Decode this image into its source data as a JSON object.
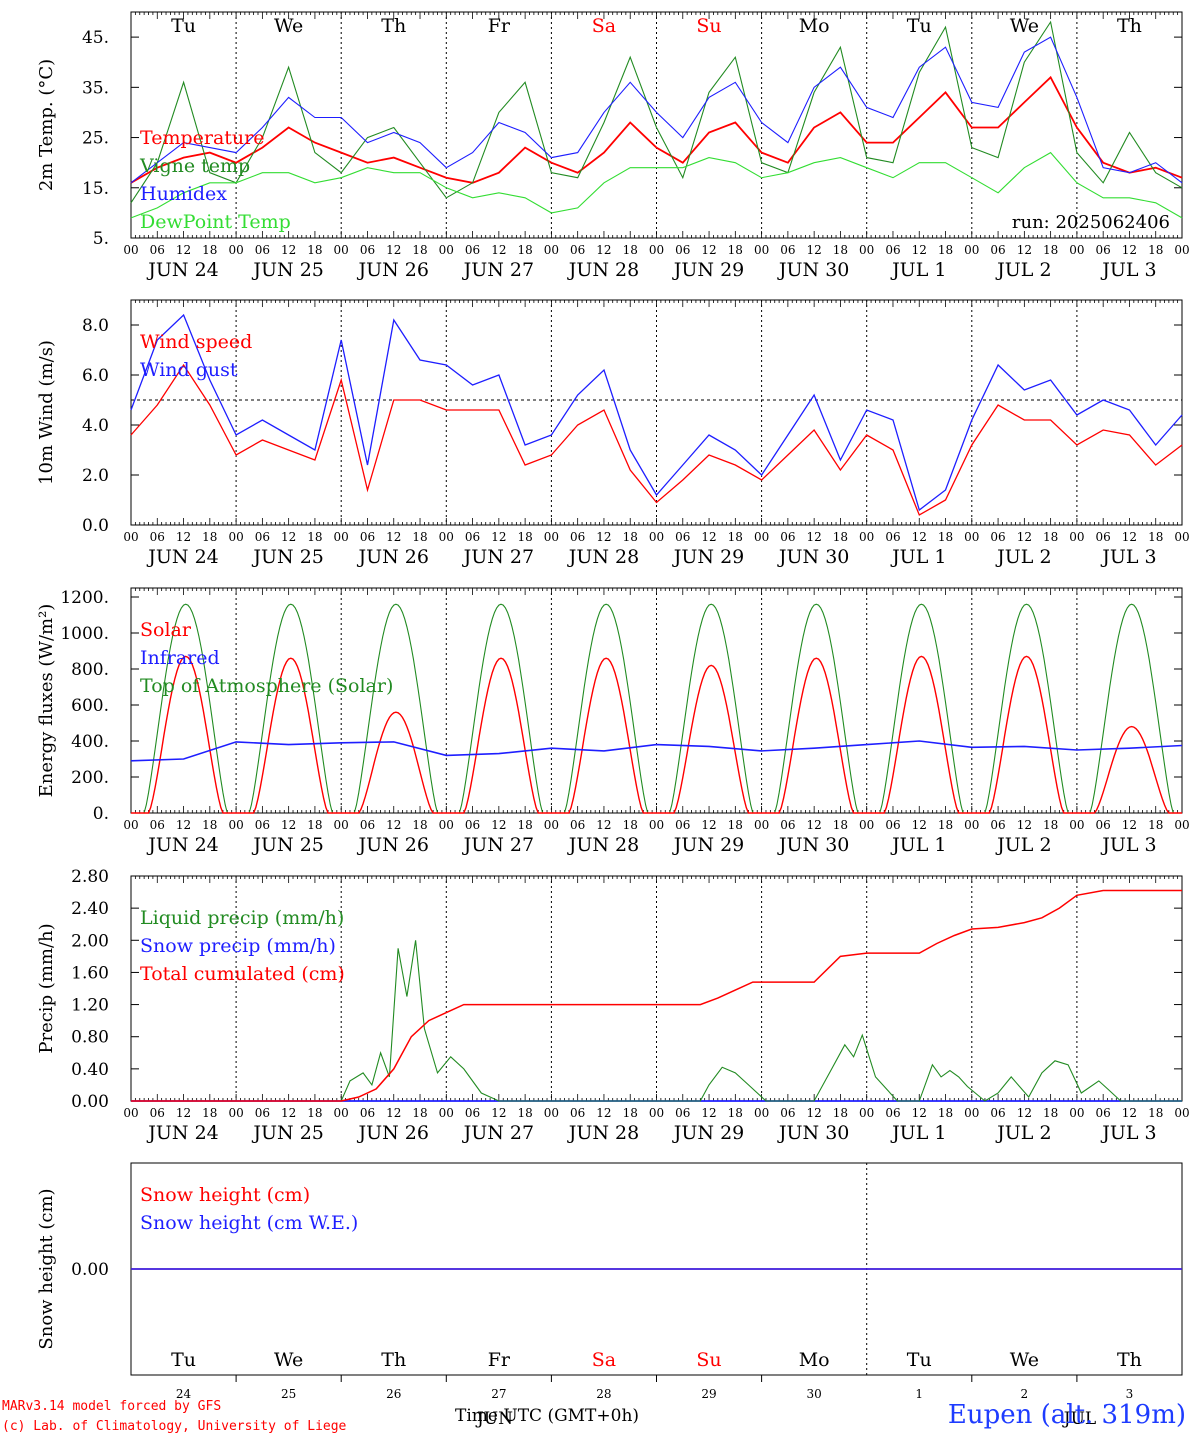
{
  "footer": {
    "model": "MARv3.14 model forced by GFS",
    "copyright": "(c) Lab. of Climatology, University of Liege",
    "time_label": "Time UTC (GMT+0h)",
    "station": "Eupen (alt. 319m)"
  },
  "colors": {
    "red": "#ff0000",
    "green": "#228b22",
    "blue": "#1e1eff",
    "lightgreen": "#33dd33"
  },
  "chart_data": [
    {
      "type": "line",
      "id": "temp",
      "ylabel": "2m Temp. (°C)",
      "ylim": [
        5,
        50
      ],
      "yticks": [
        "5.",
        "15.",
        "25.",
        "35.",
        "45."
      ],
      "ytick_values": [
        5,
        15,
        25,
        35,
        45
      ],
      "run_label": "run: 2025062406",
      "day_names": [
        "Tu",
        "We",
        "Th",
        "Fr",
        "Sa",
        "Su",
        "Mo",
        "Tu",
        "We",
        "Th"
      ],
      "weekend_days": [
        4,
        5
      ],
      "date_labels": [
        "JUN 24",
        "JUN 25",
        "JUN 26",
        "JUN 27",
        "JUN 28",
        "JUN 29",
        "JUN 30",
        "JUL  1",
        "JUL  2",
        "JUL  3"
      ],
      "hour_labels": [
        "00",
        "06",
        "12",
        "18"
      ],
      "x_unit": "hours since Jun 24 00 UTC",
      "series": [
        {
          "name": "Temperature",
          "color": "#ff0000",
          "x": [
            0,
            6,
            12,
            18,
            24,
            30,
            36,
            42,
            48,
            54,
            60,
            66,
            72,
            78,
            84,
            90,
            96,
            102,
            108,
            114,
            120,
            126,
            132,
            138,
            144,
            150,
            156,
            162,
            168,
            174,
            180,
            186,
            192,
            198,
            204,
            210,
            216,
            222,
            228,
            234,
            240
          ],
          "y": [
            16,
            19,
            21,
            22,
            20,
            23,
            27,
            24,
            22,
            20,
            21,
            19,
            17,
            16,
            18,
            23,
            20,
            18,
            22,
            28,
            23,
            20,
            26,
            28,
            22,
            20,
            27,
            30,
            24,
            24,
            29,
            34,
            27,
            27,
            32,
            37,
            27,
            20,
            18,
            19,
            17
          ]
        },
        {
          "name": "Vigne temp",
          "color": "#228b22",
          "x": [
            0,
            6,
            12,
            18,
            24,
            30,
            36,
            42,
            48,
            54,
            60,
            66,
            72,
            78,
            84,
            90,
            96,
            102,
            108,
            114,
            120,
            126,
            132,
            138,
            144,
            150,
            156,
            162,
            168,
            174,
            180,
            186,
            192,
            198,
            204,
            210,
            216,
            222,
            228,
            234,
            240
          ],
          "y": [
            12,
            20,
            36,
            18,
            16,
            25,
            39,
            22,
            18,
            25,
            27,
            20,
            13,
            16,
            30,
            36,
            18,
            17,
            28,
            41,
            27,
            17,
            34,
            41,
            20,
            18,
            34,
            43,
            21,
            20,
            38,
            47,
            23,
            21,
            40,
            48,
            22,
            16,
            26,
            18,
            15
          ]
        },
        {
          "name": "Humidex",
          "color": "#1e1eff",
          "x": [
            0,
            6,
            12,
            18,
            24,
            30,
            36,
            42,
            48,
            54,
            60,
            66,
            72,
            78,
            84,
            90,
            96,
            102,
            108,
            114,
            120,
            126,
            132,
            138,
            144,
            150,
            156,
            162,
            168,
            174,
            180,
            186,
            192,
            198,
            204,
            210,
            216,
            222,
            228,
            234,
            240
          ],
          "y": [
            16,
            20,
            24,
            23,
            22,
            27,
            33,
            29,
            29,
            24,
            26,
            24,
            19,
            22,
            28,
            26,
            21,
            22,
            30,
            36,
            30,
            25,
            33,
            36,
            28,
            24,
            35,
            39,
            31,
            29,
            39,
            43,
            32,
            31,
            42,
            45,
            33,
            19,
            18,
            20,
            16
          ]
        },
        {
          "name": "DewPoint Temp",
          "color": "#33dd33",
          "x": [
            0,
            6,
            12,
            18,
            24,
            30,
            36,
            42,
            48,
            54,
            60,
            66,
            72,
            78,
            84,
            90,
            96,
            102,
            108,
            114,
            120,
            126,
            132,
            138,
            144,
            150,
            156,
            162,
            168,
            174,
            180,
            186,
            192,
            198,
            204,
            210,
            216,
            222,
            228,
            234,
            240
          ],
          "y": [
            9,
            11,
            14,
            16,
            16,
            18,
            18,
            16,
            17,
            19,
            18,
            18,
            15,
            13,
            14,
            13,
            10,
            11,
            16,
            19,
            19,
            19,
            21,
            20,
            17,
            18,
            20,
            21,
            19,
            17,
            20,
            20,
            17,
            14,
            19,
            22,
            16,
            13,
            13,
            12,
            9
          ]
        }
      ]
    },
    {
      "type": "line",
      "id": "wind",
      "ylabel": "10m Wind (m/s)",
      "ylim": [
        0,
        9
      ],
      "yticks": [
        "0.0",
        "2.0",
        "4.0",
        "6.0",
        "8.0"
      ],
      "ytick_values": [
        0,
        2,
        4,
        6,
        8
      ],
      "ref_line": 5,
      "date_labels": [
        "JUN 24",
        "JUN 25",
        "JUN 26",
        "JUN 27",
        "JUN 28",
        "JUN 29",
        "JUN 30",
        "JUL  1",
        "JUL  2",
        "JUL  3"
      ],
      "hour_labels": [
        "00",
        "06",
        "12",
        "18"
      ],
      "series": [
        {
          "name": "Wind speed",
          "color": "#ff0000",
          "x": [
            0,
            6,
            12,
            18,
            24,
            30,
            36,
            42,
            48,
            54,
            60,
            66,
            72,
            78,
            84,
            90,
            96,
            102,
            108,
            114,
            120,
            126,
            132,
            138,
            144,
            150,
            156,
            162,
            168,
            174,
            180,
            186,
            192,
            198,
            204,
            210,
            216,
            222,
            228,
            234,
            240
          ],
          "y": [
            3.6,
            4.8,
            6.4,
            4.8,
            2.8,
            3.4,
            3.0,
            2.6,
            5.8,
            1.4,
            5.0,
            5.0,
            4.6,
            4.6,
            4.6,
            2.4,
            2.8,
            4.0,
            4.6,
            2.2,
            0.9,
            1.8,
            2.8,
            2.4,
            1.8,
            2.8,
            3.8,
            2.2,
            3.6,
            3.0,
            0.4,
            1.0,
            3.2,
            4.8,
            4.2,
            4.2,
            3.2,
            3.8,
            3.6,
            2.4,
            3.2
          ]
        },
        {
          "name": "Wind gust",
          "color": "#1e1eff",
          "x": [
            0,
            6,
            12,
            18,
            24,
            30,
            36,
            42,
            48,
            54,
            60,
            66,
            72,
            78,
            84,
            90,
            96,
            102,
            108,
            114,
            120,
            126,
            132,
            138,
            144,
            150,
            156,
            162,
            168,
            174,
            180,
            186,
            192,
            198,
            204,
            210,
            216,
            222,
            228,
            234,
            240
          ],
          "y": [
            4.6,
            7.4,
            8.4,
            5.8,
            3.6,
            4.2,
            3.6,
            3.0,
            7.4,
            2.4,
            8.2,
            6.6,
            6.4,
            5.6,
            6.0,
            3.2,
            3.6,
            5.2,
            6.2,
            3.0,
            1.2,
            2.4,
            3.6,
            3.0,
            2.0,
            3.6,
            5.2,
            2.6,
            4.6,
            4.2,
            0.6,
            1.4,
            4.2,
            6.4,
            5.4,
            5.8,
            4.4,
            5.0,
            4.6,
            3.2,
            4.4
          ]
        }
      ]
    },
    {
      "type": "line",
      "id": "energy",
      "ylabel": "Energy fluxes (W/m²)",
      "ylim": [
        0,
        1250
      ],
      "yticks": [
        "0.",
        "200.",
        "400.",
        "600.",
        "800.",
        "1000.",
        "1200."
      ],
      "ytick_values": [
        0,
        200,
        400,
        600,
        800,
        1000,
        1200
      ],
      "date_labels": [
        "JUN 24",
        "JUN 25",
        "JUN 26",
        "JUN 27",
        "JUN 28",
        "JUN 29",
        "JUN 30",
        "JUL  1",
        "JUL  2",
        "JUL  3"
      ],
      "hour_labels": [
        "00",
        "06",
        "12",
        "18"
      ],
      "solar_peaks": [
        870,
        860,
        560,
        860,
        860,
        820,
        860,
        870,
        870,
        480
      ],
      "toa_peak": 1160,
      "infrared": [
        290,
        300,
        395,
        380,
        390,
        395,
        320,
        330,
        360,
        345,
        380,
        370,
        345,
        360,
        380,
        400,
        365,
        370,
        350,
        360,
        375
      ],
      "series": [
        {
          "name": "Solar",
          "color": "#ff0000"
        },
        {
          "name": "Infrared",
          "color": "#1e1eff"
        },
        {
          "name": "Top of Atmosphere (Solar)",
          "color": "#228b22"
        }
      ]
    },
    {
      "type": "line",
      "id": "precip",
      "ylabel": "Precip (mm/h)",
      "ylim": [
        0,
        2.8
      ],
      "yticks": [
        "0.00",
        "0.40",
        "0.80",
        "1.20",
        "1.60",
        "2.00",
        "2.40",
        "2.80"
      ],
      "ytick_values": [
        0,
        0.4,
        0.8,
        1.2,
        1.6,
        2.0,
        2.4,
        2.8
      ],
      "date_labels": [
        "JUN 24",
        "JUN 25",
        "JUN 26",
        "JUN 27",
        "JUN 28",
        "JUN 29",
        "JUN 30",
        "JUL  1",
        "JUL  2",
        "JUL  3"
      ],
      "hour_labels": [
        "00",
        "06",
        "12",
        "18"
      ],
      "series": [
        {
          "name": "Liquid precip (mm/h)",
          "color": "#228b22",
          "x": [
            0,
            48,
            50,
            53,
            55,
            57,
            59,
            61,
            63,
            65,
            67,
            70,
            73,
            76,
            80,
            84,
            130,
            132,
            135,
            138,
            141,
            145,
            156,
            160,
            163,
            165,
            167,
            170,
            175,
            180,
            183,
            185,
            187,
            189,
            191,
            195,
            198,
            201,
            205,
            208,
            211,
            214,
            217,
            221,
            223,
            226,
            230,
            240
          ],
          "y": [
            0,
            0,
            0.25,
            0.35,
            0.2,
            0.6,
            0.3,
            1.9,
            1.3,
            2.0,
            0.9,
            0.35,
            0.55,
            0.4,
            0.1,
            0,
            0,
            0.2,
            0.42,
            0.35,
            0.2,
            0,
            0,
            0.4,
            0.7,
            0.55,
            0.82,
            0.3,
            0,
            0,
            0.45,
            0.3,
            0.38,
            0.3,
            0.18,
            0,
            0.1,
            0.3,
            0.05,
            0.35,
            0.5,
            0.45,
            0.1,
            0.25,
            0.15,
            0,
            0,
            0
          ]
        },
        {
          "name": "Snow precip (mm/h)",
          "color": "#1e1eff",
          "x": [
            0,
            240
          ],
          "y": [
            0,
            0
          ]
        },
        {
          "name": "Total cumulated (cm)",
          "color": "#ff0000",
          "x": [
            0,
            48,
            52,
            56,
            60,
            64,
            68,
            72,
            76,
            80,
            84,
            96,
            120,
            130,
            134,
            138,
            142,
            150,
            156,
            162,
            168,
            176,
            180,
            184,
            188,
            192,
            198,
            204,
            208,
            212,
            216,
            222,
            240
          ],
          "y": [
            0,
            0,
            0.05,
            0.15,
            0.4,
            0.8,
            1.0,
            1.1,
            1.2,
            1.2,
            1.2,
            1.2,
            1.2,
            1.2,
            1.28,
            1.38,
            1.48,
            1.48,
            1.48,
            1.8,
            1.84,
            1.84,
            1.84,
            1.96,
            2.06,
            2.14,
            2.16,
            2.22,
            2.28,
            2.4,
            2.56,
            2.62,
            2.62
          ]
        }
      ]
    },
    {
      "type": "line",
      "id": "snow",
      "ylabel": "Snow height (cm)",
      "ylim": [
        -1,
        1
      ],
      "yticks": [
        "0.00"
      ],
      "ytick_values": [
        0
      ],
      "day_names": [
        "Tu",
        "We",
        "Th",
        "Fr",
        "Sa",
        "Su",
        "Mo",
        "Tu",
        "We",
        "Th"
      ],
      "weekend_days": [
        4,
        5
      ],
      "day_numbers": [
        "24",
        "25",
        "26",
        "27",
        "28",
        "29",
        "30",
        "1",
        "2",
        "3"
      ],
      "month_label_1": "JUN",
      "month_label_2": "JUL",
      "series": [
        {
          "name": "Snow height (cm)",
          "color": "#ff0000",
          "x": [
            0,
            240
          ],
          "y": [
            0,
            0
          ]
        },
        {
          "name": "Snow height (cm W.E.)",
          "color": "#1e1eff",
          "x": [
            0,
            240
          ],
          "y": [
            0,
            0
          ]
        }
      ]
    }
  ]
}
